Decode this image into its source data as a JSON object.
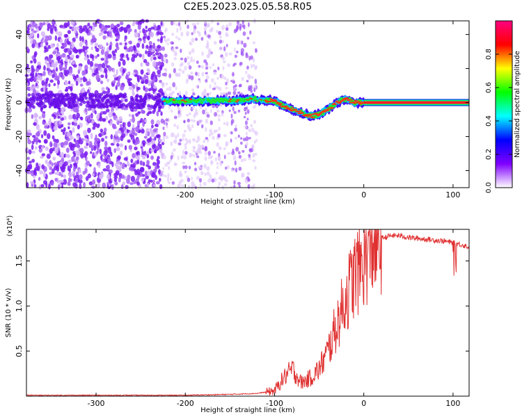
{
  "title": "C2E5.2023.025.05.58.R05",
  "chart_data": [
    {
      "type": "heatmap",
      "xlabel": "Height of straight line (km)",
      "ylabel": "Frequency (Hz)",
      "xlim": [
        -378,
        118
      ],
      "ylim": [
        -50,
        48
      ],
      "x_ticks": [
        -300,
        -200,
        -100,
        0,
        100
      ],
      "y_ticks": [
        -40,
        -20,
        0,
        20,
        40
      ],
      "colorbar": {
        "label": "Normalized spectral amplitude",
        "range": [
          0,
          1
        ],
        "ticks": [
          "0.0",
          "0.2",
          "0.4",
          "0.6",
          "0.8"
        ],
        "tick_values": [
          0,
          0.2,
          0.4,
          0.6,
          0.8
        ],
        "colormap": [
          "#ffffff",
          "#8000ff",
          "#0000ff",
          "#00ffff",
          "#00ff00",
          "#ffff00",
          "#ff0000",
          "#ff0080"
        ]
      },
      "noise_region_km": [
        -378,
        -225
      ],
      "fading_noise_km": [
        -225,
        -120
      ],
      "signal_trace": {
        "x": [
          -225,
          -200,
          -175,
          -150,
          -125,
          -100,
          -90,
          -80,
          -70,
          -60,
          -50,
          -40,
          -30,
          -20,
          -10,
          0,
          118
        ],
        "y": [
          1,
          1,
          1,
          1,
          2,
          1,
          -2,
          -4,
          -6,
          -8,
          -7,
          -4,
          0,
          2,
          0,
          0,
          0
        ]
      }
    },
    {
      "type": "line",
      "xlabel": "Height of straight line (km)",
      "ylabel": "SNR (10 * v/v)",
      "y_exponent": "(x10⁴)",
      "xlim": [
        -378,
        118
      ],
      "ylim": [
        0,
        1.85
      ],
      "x_ticks": [
        -300,
        -200,
        -100,
        0,
        100
      ],
      "y_ticks": [
        0.5,
        1.0,
        1.5
      ],
      "y_tick_labels": [
        "0.5",
        "1.0",
        "1.5"
      ],
      "color": "#e03030",
      "series": [
        {
          "x": [
            -378,
            -300,
            -200,
            -150,
            -120,
            -100,
            -90,
            -80,
            -70,
            -60,
            -50,
            -40,
            -30,
            -20,
            -10,
            0,
            10,
            20,
            30,
            40,
            50,
            60,
            70,
            80,
            90,
            100,
            110,
            118
          ],
          "values": [
            0.01,
            0.01,
            0.01,
            0.02,
            0.03,
            0.06,
            0.2,
            0.3,
            0.15,
            0.2,
            0.3,
            0.5,
            0.8,
            1.1,
            1.35,
            1.5,
            1.7,
            1.75,
            1.78,
            1.78,
            1.76,
            1.75,
            1.74,
            1.73,
            1.72,
            1.7,
            1.68,
            1.65
          ]
        }
      ]
    }
  ]
}
